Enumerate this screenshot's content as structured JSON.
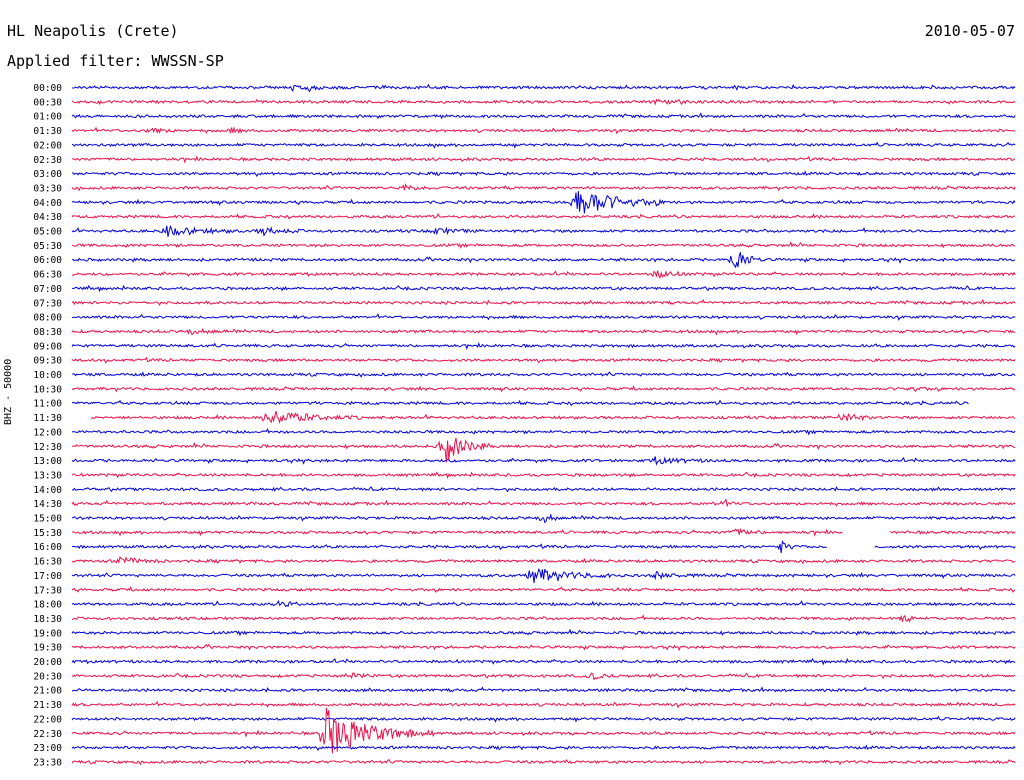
{
  "header": {
    "station": "HL Neapolis (Crete)",
    "date": "2010-05-07",
    "filter": "Applied filter: WWSSN-SP"
  },
  "colors": {
    "trace_a": "#0000dd",
    "trace_b": "#f0104a"
  },
  "chart_data": {
    "type": "line",
    "title": "HL Neapolis (Crete)",
    "subtitle": "Applied filter: WWSSN-SP",
    "xlabel": "",
    "ylabel": "BHZ - 50000",
    "grid": false,
    "tick_labels": [
      "00:00",
      "00:30",
      "01:00",
      "01:30",
      "02:00",
      "02:30",
      "03:00",
      "03:30",
      "04:00",
      "04:30",
      "05:00",
      "05:30",
      "06:00",
      "06:30",
      "07:00",
      "07:30",
      "08:00",
      "08:30",
      "09:00",
      "09:30",
      "10:00",
      "10:30",
      "11:00",
      "11:30",
      "12:00",
      "12:30",
      "13:00",
      "13:30",
      "14:00",
      "14:30",
      "15:00",
      "15:30",
      "16:00",
      "16:30",
      "17:00",
      "17:30",
      "18:00",
      "18:30",
      "19:00",
      "19:30",
      "20:00",
      "20:30",
      "21:00",
      "21:30",
      "22:00",
      "22:30",
      "23:00",
      "23:30"
    ],
    "row_colors": [
      "trace_a",
      "trace_b"
    ],
    "row_minutes": 30,
    "events": [
      {
        "row": 0,
        "minute": 7,
        "amp": 3,
        "dur": 2
      },
      {
        "row": 1,
        "minute": 18.5,
        "amp": 2,
        "dur": 2
      },
      {
        "row": 3,
        "minute": 2.5,
        "amp": 3,
        "dur": 1
      },
      {
        "row": 3,
        "minute": 5,
        "amp": 2,
        "dur": 1
      },
      {
        "row": 7,
        "minute": 10.5,
        "amp": 3,
        "dur": 1
      },
      {
        "row": 8,
        "minute": 16,
        "amp": 16,
        "dur": 3
      },
      {
        "row": 10,
        "minute": 3,
        "amp": 5,
        "dur": 2.5
      },
      {
        "row": 10,
        "minute": 6,
        "amp": 4,
        "dur": 1.5
      },
      {
        "row": 10,
        "minute": 11.5,
        "amp": 3,
        "dur": 1.5
      },
      {
        "row": 12,
        "minute": 21,
        "amp": 14,
        "dur": 1
      },
      {
        "row": 13,
        "minute": 18.5,
        "amp": 4,
        "dur": 1.5
      },
      {
        "row": 17,
        "minute": 3.8,
        "amp": 3,
        "dur": 1
      },
      {
        "row": 21,
        "minute": 26.5,
        "amp": 3,
        "dur": 1
      },
      {
        "row": 23,
        "minute": 6.2,
        "amp": 8,
        "dur": 3
      },
      {
        "row": 23,
        "minute": 24.5,
        "amp": 6,
        "dur": 1
      },
      {
        "row": 25,
        "minute": 11.8,
        "amp": 18,
        "dur": 1.5
      },
      {
        "row": 26,
        "minute": 18.5,
        "amp": 3,
        "dur": 2
      },
      {
        "row": 29,
        "minute": 20.5,
        "amp": 3,
        "dur": 1
      },
      {
        "row": 30,
        "minute": 15,
        "amp": 7,
        "dur": 0.5
      },
      {
        "row": 31,
        "minute": 21,
        "amp": 3,
        "dur": 1.5
      },
      {
        "row": 32,
        "minute": 22.5,
        "amp": 7,
        "dur": 0.5
      },
      {
        "row": 33,
        "minute": 1.5,
        "amp": 4,
        "dur": 1.5
      },
      {
        "row": 34,
        "minute": 14.5,
        "amp": 8,
        "dur": 3
      },
      {
        "row": 34,
        "minute": 18.5,
        "amp": 3,
        "dur": 1.5
      },
      {
        "row": 36,
        "minute": 6.5,
        "amp": 3,
        "dur": 1
      },
      {
        "row": 37,
        "minute": 26.5,
        "amp": 5,
        "dur": 0.5
      },
      {
        "row": 41,
        "minute": 8.8,
        "amp": 3,
        "dur": 1
      },
      {
        "row": 41,
        "minute": 16.5,
        "amp": 3,
        "dur": 1
      },
      {
        "row": 45,
        "minute": 8,
        "amp": 26,
        "dur": 3.5
      }
    ],
    "gaps": [
      {
        "row": 22,
        "start_minute": 28.5,
        "end_minute": 30
      },
      {
        "row": 23,
        "start_minute": 0,
        "end_minute": 0.6
      },
      {
        "row": 31,
        "start_minute": 24.5,
        "end_minute": 26
      },
      {
        "row": 32,
        "start_minute": 24,
        "end_minute": 25.5
      }
    ]
  }
}
